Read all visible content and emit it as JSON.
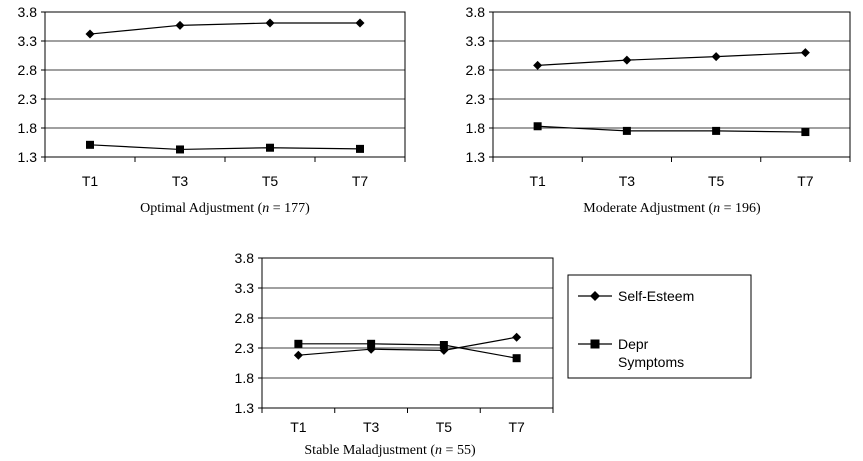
{
  "chart_data": [
    {
      "type": "line",
      "caption_prefix": "Optimal Adjustment (",
      "caption_n": "n",
      "caption_suffix": " = 177)",
      "categories": [
        "T1",
        "T3",
        "T5",
        "T7"
      ],
      "ylim": [
        1.3,
        3.8
      ],
      "yticks": [
        "3.8",
        "3.3",
        "2.8",
        "2.3",
        "1.8",
        "1.3"
      ],
      "grid": true,
      "series": [
        {
          "name": "Self-Esteem",
          "marker": "diamond",
          "values": [
            3.42,
            3.57,
            3.61,
            3.61
          ]
        },
        {
          "name": "Depr Symptoms",
          "marker": "square",
          "values": [
            1.51,
            1.43,
            1.46,
            1.44
          ]
        }
      ]
    },
    {
      "type": "line",
      "caption_prefix": "Moderate Adjustment (",
      "caption_n": "n",
      "caption_suffix": " = 196)",
      "categories": [
        "T1",
        "T3",
        "T5",
        "T7"
      ],
      "ylim": [
        1.3,
        3.8
      ],
      "yticks": [
        "3.8",
        "3.3",
        "2.8",
        "2.3",
        "1.8",
        "1.3"
      ],
      "grid": true,
      "series": [
        {
          "name": "Self-Esteem",
          "marker": "diamond",
          "values": [
            2.88,
            2.97,
            3.03,
            3.1
          ]
        },
        {
          "name": "Depr Symptoms",
          "marker": "square",
          "values": [
            1.83,
            1.75,
            1.75,
            1.73
          ]
        }
      ]
    },
    {
      "type": "line",
      "caption_prefix": "Stable Maladjustment (",
      "caption_n": "n",
      "caption_suffix": " = 55)",
      "categories": [
        "T1",
        "T3",
        "T5",
        "T7"
      ],
      "ylim": [
        1.3,
        3.8
      ],
      "yticks": [
        "3.8",
        "3.3",
        "2.8",
        "2.3",
        "1.8",
        "1.3"
      ],
      "grid": true,
      "series": [
        {
          "name": "Self-Esteem",
          "marker": "diamond",
          "values": [
            2.18,
            2.28,
            2.26,
            2.48
          ]
        },
        {
          "name": "Depr Symptoms",
          "marker": "square",
          "values": [
            2.37,
            2.37,
            2.35,
            2.13
          ]
        }
      ]
    }
  ],
  "legend": {
    "placement": "right of bottom chart",
    "items": [
      {
        "label": "Self-Esteem",
        "marker": "diamond"
      },
      {
        "label_lines": [
          "Depr",
          "Symptoms"
        ],
        "marker": "square"
      }
    ]
  }
}
